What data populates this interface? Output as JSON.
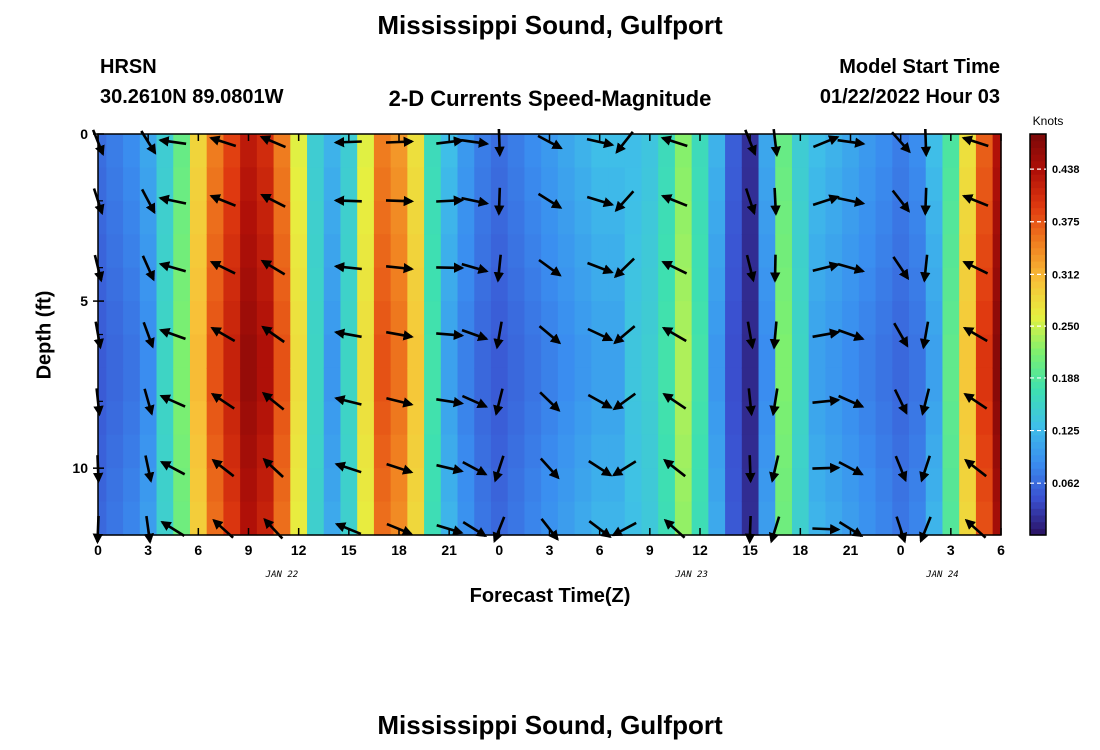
{
  "page": {
    "title_top": "Mississippi Sound, Gulfport",
    "title_bottom": "Mississippi Sound, Gulfport",
    "station_id": "HRSN",
    "station_coords": "30.2610N  89.0801W",
    "plot_title": "2-D Currents Speed-Magnitude",
    "model_start_label": "Model Start Time",
    "model_start_value": "01/22/2022 Hour 03"
  },
  "chart_data": {
    "type": "heatmap",
    "title": "2-D Currents Speed-Magnitude",
    "xlabel": "Forecast Time(Z)",
    "ylabel": "Depth (ft)",
    "ylim": [
      0,
      12
    ],
    "y_inverted": true,
    "y_tick_labels": [
      "0",
      "5",
      "10"
    ],
    "y_tick_values": [
      0,
      5,
      10
    ],
    "y_minor_ticks": [
      2,
      4,
      6,
      8,
      12
    ],
    "x_hours_range": [
      0,
      54
    ],
    "x_tick_hours": [
      0,
      3,
      6,
      9,
      12,
      15,
      18,
      21,
      24,
      27,
      30,
      33,
      36,
      39,
      42,
      45,
      48,
      51,
      54
    ],
    "x_tick_labels": [
      "0",
      "3",
      "6",
      "9",
      "12",
      "15",
      "18",
      "21",
      "0",
      "3",
      "6",
      "9",
      "12",
      "15",
      "18",
      "21",
      "0",
      "3",
      "6"
    ],
    "date_labels": [
      {
        "text": "JAN 22",
        "hour": 11
      },
      {
        "text": "JAN 23",
        "hour": 35.5
      },
      {
        "text": "JAN 24",
        "hour": 50.5
      }
    ],
    "colorbar": {
      "label": "Knots",
      "min": 0.0,
      "max": 0.48,
      "tick_values": [
        0.062,
        0.125,
        0.188,
        0.25,
        0.312,
        0.375,
        0.438
      ],
      "tick_labels": [
        "0.062",
        "0.125",
        "0.188",
        "0.250",
        "0.312",
        "0.375",
        "0.438"
      ],
      "colors": [
        "#2a1060",
        "#3a4fcf",
        "#3a8ef0",
        "#3fbfe8",
        "#3ee0b0",
        "#7cf070",
        "#e6f040",
        "#f8c038",
        "#f08020",
        "#e03a10",
        "#b01008",
        "#7a0808"
      ]
    },
    "speed_by_hour": {
      "hours": [
        0,
        1,
        2,
        3,
        4,
        5,
        6,
        7,
        8,
        9,
        10,
        11,
        12,
        13,
        14,
        15,
        16,
        17,
        18,
        19,
        20,
        21,
        22,
        23,
        24,
        25,
        26,
        27,
        28,
        29,
        30,
        31,
        32,
        33,
        34,
        35,
        36,
        37,
        38,
        39,
        40,
        41,
        42,
        43,
        44,
        45,
        46,
        47,
        48,
        49,
        50,
        51,
        52,
        53,
        54
      ],
      "values": [
        0.06,
        0.07,
        0.08,
        0.1,
        0.16,
        0.22,
        0.31,
        0.38,
        0.42,
        0.46,
        0.44,
        0.38,
        0.28,
        0.16,
        0.11,
        0.16,
        0.28,
        0.38,
        0.36,
        0.3,
        0.18,
        0.12,
        0.09,
        0.07,
        0.06,
        0.07,
        0.08,
        0.09,
        0.1,
        0.11,
        0.12,
        0.12,
        0.14,
        0.15,
        0.18,
        0.24,
        0.18,
        0.11,
        0.05,
        0.02,
        0.1,
        0.22,
        0.16,
        0.12,
        0.11,
        0.1,
        0.09,
        0.08,
        0.07,
        0.08,
        0.12,
        0.2,
        0.3,
        0.4,
        0.47
      ]
    },
    "depth_rows": [
      0,
      2,
      4,
      6,
      8,
      10,
      12
    ],
    "vector_hours": [
      0,
      3,
      4.5,
      7.5,
      10.5,
      15,
      18,
      21,
      22.5,
      24,
      27,
      30,
      31.5,
      34.5,
      39,
      40.5,
      43.5,
      45,
      48,
      49.5,
      52.5
    ],
    "vector_angles_deg": [
      80,
      70,
      200,
      210,
      215,
      190,
      10,
      5,
      20,
      100,
      40,
      25,
      140,
      210,
      80,
      95,
      -10,
      20,
      60,
      100,
      210
    ]
  }
}
